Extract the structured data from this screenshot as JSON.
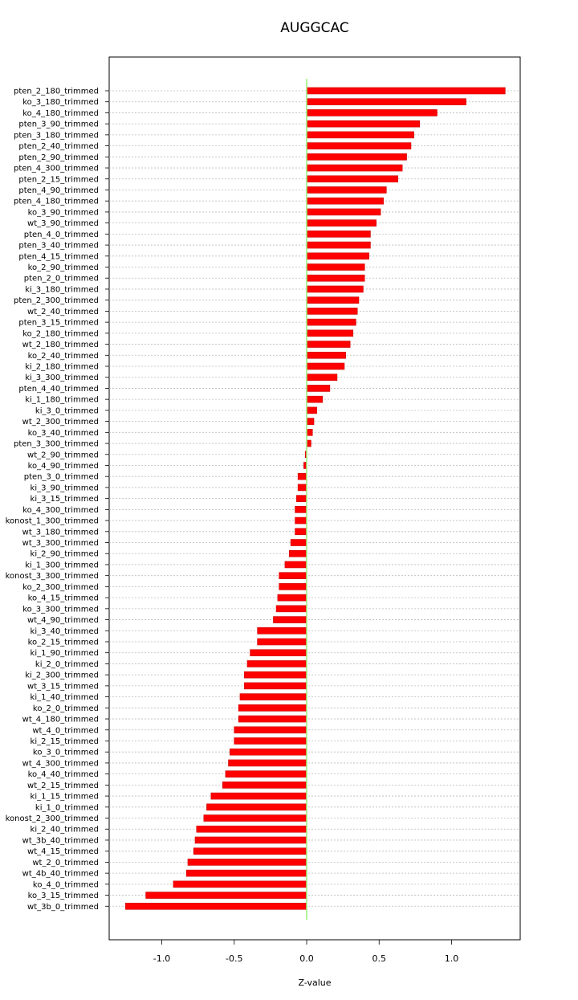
{
  "chart_data": {
    "type": "bar",
    "orientation": "horizontal",
    "title": "AUGGCAC",
    "xlabel": "Z-value",
    "ylabel": "",
    "xlim": [
      -1.3,
      1.48
    ],
    "xticks": [
      -1.0,
      -0.5,
      0.0,
      0.5,
      1.0
    ],
    "xtick_labels": [
      "-1.0",
      "-0.5",
      "0.0",
      "0.5",
      "1.0"
    ],
    "grid": "horizontal dotted",
    "reference_line": 0.0,
    "colors": {
      "bar": "#ff0000",
      "bar_edge": "#cc0000",
      "reference_line": "#99ee77",
      "grid": "#bbbbbb"
    },
    "categories": [
      "pten_2_180_trimmed",
      "ko_3_180_trimmed",
      "ko_4_180_trimmed",
      "pten_3_90_trimmed",
      "pten_3_180_trimmed",
      "pten_2_40_trimmed",
      "pten_2_90_trimmed",
      "pten_4_300_trimmed",
      "pten_2_15_trimmed",
      "pten_4_90_trimmed",
      "pten_4_180_trimmed",
      "ko_3_90_trimmed",
      "wt_3_90_trimmed",
      "pten_4_0_trimmed",
      "pten_3_40_trimmed",
      "pten_4_15_trimmed",
      "ko_2_90_trimmed",
      "pten_2_0_trimmed",
      "ki_3_180_trimmed",
      "pten_2_300_trimmed",
      "wt_2_40_trimmed",
      "pten_3_15_trimmed",
      "ko_2_180_trimmed",
      "wt_2_180_trimmed",
      "ko_2_40_trimmed",
      "ki_2_180_trimmed",
      "ki_3_300_trimmed",
      "pten_4_40_trimmed",
      "ki_1_180_trimmed",
      "ki_3_0_trimmed",
      "wt_2_300_trimmed",
      "ko_3_40_trimmed",
      "pten_3_300_trimmed",
      "wt_2_90_trimmed",
      "ko_4_90_trimmed",
      "pten_3_0_trimmed",
      "ki_3_90_trimmed",
      "ki_3_15_trimmed",
      "ko_4_300_trimmed",
      "konost_1_300_trimmed",
      "wt_3_180_trimmed",
      "wt_3_300_trimmed",
      "ki_2_90_trimmed",
      "ki_1_300_trimmed",
      "konost_3_300_trimmed",
      "ko_2_300_trimmed",
      "ko_4_15_trimmed",
      "ko_3_300_trimmed",
      "wt_4_90_trimmed",
      "ki_3_40_trimmed",
      "ko_2_15_trimmed",
      "ki_1_90_trimmed",
      "ki_2_0_trimmed",
      "ki_2_300_trimmed",
      "wt_3_15_trimmed",
      "ki_1_40_trimmed",
      "ko_2_0_trimmed",
      "wt_4_180_trimmed",
      "wt_4_0_trimmed",
      "ki_2_15_trimmed",
      "ko_3_0_trimmed",
      "wt_4_300_trimmed",
      "ko_4_40_trimmed",
      "wt_2_15_trimmed",
      "ki_1_15_trimmed",
      "ki_1_0_trimmed",
      "konost_2_300_trimmed",
      "ki_2_40_trimmed",
      "wt_3b_40_trimmed",
      "wt_4_15_trimmed",
      "wt_2_0_trimmed",
      "wt_4b_40_trimmed",
      "ko_4_0_trimmed",
      "ko_3_15_trimmed",
      "wt_3b_0_trimmed"
    ],
    "values": [
      1.37,
      1.1,
      0.9,
      0.78,
      0.74,
      0.72,
      0.69,
      0.66,
      0.63,
      0.55,
      0.53,
      0.51,
      0.48,
      0.44,
      0.44,
      0.43,
      0.4,
      0.4,
      0.39,
      0.36,
      0.35,
      0.34,
      0.32,
      0.3,
      0.27,
      0.26,
      0.21,
      0.16,
      0.11,
      0.07,
      0.05,
      0.04,
      0.03,
      -0.01,
      -0.02,
      -0.06,
      -0.06,
      -0.07,
      -0.08,
      -0.08,
      -0.08,
      -0.11,
      -0.12,
      -0.15,
      -0.19,
      -0.19,
      -0.2,
      -0.21,
      -0.23,
      -0.34,
      -0.34,
      -0.39,
      -0.41,
      -0.43,
      -0.43,
      -0.46,
      -0.47,
      -0.47,
      -0.5,
      -0.5,
      -0.53,
      -0.54,
      -0.56,
      -0.58,
      -0.66,
      -0.69,
      -0.71,
      -0.76,
      -0.77,
      -0.78,
      -0.82,
      -0.83,
      -0.92,
      -1.11,
      -1.25
    ]
  }
}
